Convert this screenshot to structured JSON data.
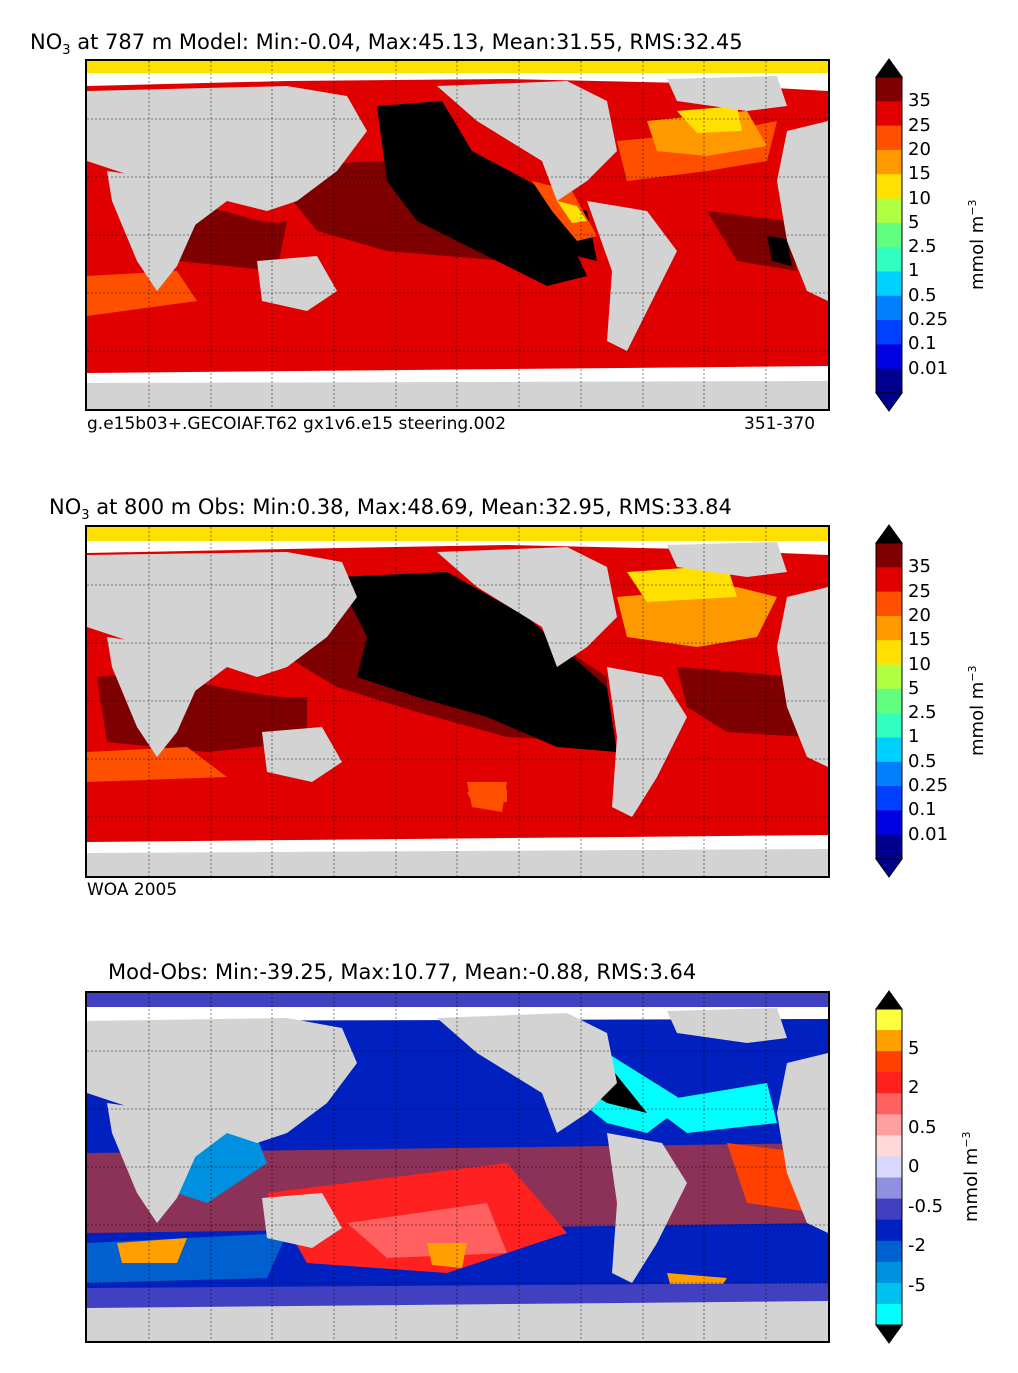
{
  "panels": [
    {
      "title_prefix": "NO",
      "title_sub": "3",
      "title_rest": " at 787 m Model: Min:-0.04, Max:45.13, Mean:31.55, RMS:32.45",
      "footer_left": "g.e15b03+.GECOIAF.T62 gx1v6.e15 steering.002",
      "footer_right": "351-370"
    },
    {
      "title_prefix": "NO",
      "title_sub": "3",
      "title_rest": " at 800 m Obs: Min:0.38, Max:48.69, Mean:32.95, RMS:33.84",
      "footer_left": "WOA 2005",
      "footer_right": ""
    },
    {
      "title_prefix": "",
      "title_sub": "",
      "title_rest": "Mod-Obs: Min:-39.25, Max:10.77, Mean:-0.88, RMS:3.64",
      "footer_left": "",
      "footer_right": ""
    }
  ],
  "colorbars": {
    "nitrate": {
      "labels": [
        "35",
        "25",
        "20",
        "15",
        "10",
        "5",
        "2.5",
        "1",
        "0.5",
        "0.25",
        "0.1",
        "0.01"
      ],
      "colors": [
        "#7f0000",
        "#e00000",
        "#ff5000",
        "#ff9900",
        "#ffe000",
        "#b0ff40",
        "#60ff80",
        "#30ffc0",
        "#00d0ff",
        "#0080ff",
        "#0040ff",
        "#0000e0",
        "#00008f"
      ],
      "under": "#00008f",
      "over": "#000000",
      "unit": "mmol m",
      "unit_sup": "−3"
    },
    "diff": {
      "labels": [
        "5",
        "2",
        "0.5",
        "0",
        "-0.5",
        "-2",
        "-5"
      ],
      "colors": [
        "#ffff40",
        "#ffa000",
        "#ff4000",
        "#ff2020",
        "#ff6060",
        "#ffa0a0",
        "#ffd8d8",
        "#d8d8ff",
        "#9090e0",
        "#4040c0",
        "#0020c0",
        "#0060d0",
        "#0090e0",
        "#00c0f0",
        "#00ffff"
      ],
      "unit": "mmol m",
      "unit_sup": "−3"
    }
  },
  "chart_data": [
    {
      "type": "heatmap",
      "title": "NO3 at 787 m Model: Min:-0.04, Max:45.13, Mean:31.55, RMS:32.45",
      "min": -0.04,
      "max": 45.13,
      "mean": 31.55,
      "rms": 32.45,
      "depth_m": 787,
      "levels": [
        0.01,
        0.1,
        0.25,
        0.5,
        1,
        2.5,
        5,
        10,
        15,
        20,
        25,
        35
      ],
      "units": "mmol m-3"
    },
    {
      "type": "heatmap",
      "title": "NO3 at 800 m Obs: Min:0.38, Max:48.69, Mean:32.95, RMS:33.84",
      "min": 0.38,
      "max": 48.69,
      "mean": 32.95,
      "rms": 33.84,
      "depth_m": 800,
      "levels": [
        0.01,
        0.1,
        0.25,
        0.5,
        1,
        2.5,
        5,
        10,
        15,
        20,
        25,
        35
      ],
      "units": "mmol m-3"
    },
    {
      "type": "heatmap",
      "title": "Mod-Obs: Min:-39.25, Max:10.77, Mean:-0.88, RMS:3.64",
      "min": -39.25,
      "max": 10.77,
      "mean": -0.88,
      "rms": 3.64,
      "levels": [
        -5,
        -2,
        -0.5,
        0,
        0.5,
        2,
        5
      ],
      "units": "mmol m-3"
    }
  ]
}
